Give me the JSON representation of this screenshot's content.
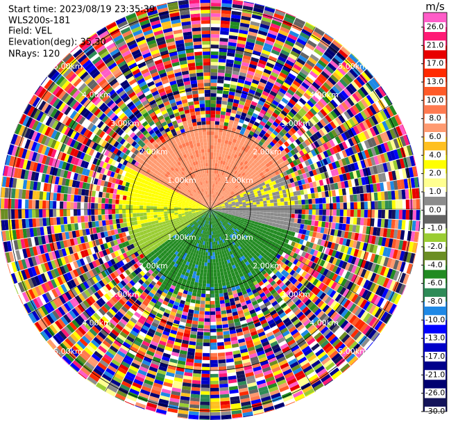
{
  "header": {
    "lines": [
      "Start time: 2023/08/19 23:35:39",
      "WLS200s-181",
      "Field: VEL",
      "Elevation(deg): 35.30",
      "NRays: 120"
    ]
  },
  "chart_data": {
    "type": "ppi",
    "colorbar": {
      "label": "m/s",
      "ticks": [
        {
          "value": 26,
          "label": "26.0"
        },
        {
          "value": 21,
          "label": "21.0"
        },
        {
          "value": 17,
          "label": "17.0"
        },
        {
          "value": 13,
          "label": "13.0"
        },
        {
          "value": 10,
          "label": "10.0"
        },
        {
          "value": 8,
          "label": "8.0"
        },
        {
          "value": 6,
          "label": "6.0"
        },
        {
          "value": 4,
          "label": "4.0"
        },
        {
          "value": 2,
          "label": "2.0"
        },
        {
          "value": 1,
          "label": "1.0"
        },
        {
          "value": 0,
          "label": "0.0"
        },
        {
          "value": -1,
          "label": "-1.0"
        },
        {
          "value": -2,
          "label": "-2.0"
        },
        {
          "value": -4,
          "label": "-4.0"
        },
        {
          "value": -6,
          "label": "-6.0"
        },
        {
          "value": -8,
          "label": "-8.0"
        },
        {
          "value": -10,
          "label": "-10.0"
        },
        {
          "value": -13,
          "label": "-13.0"
        },
        {
          "value": -17,
          "label": "-17.0"
        },
        {
          "value": -21,
          "label": "-21.0"
        },
        {
          "value": -26,
          "label": "-26.0"
        },
        {
          "value": -30,
          "label": "-30.0"
        }
      ],
      "colors": [
        "#ff5cc8",
        "#ff1a75",
        "#e80000",
        "#ff2a00",
        "#ff5a28",
        "#ff7a50",
        "#ff9a70",
        "#ffc020",
        "#ffff00",
        "#ffff90",
        "#8c8c8c",
        "#646464",
        "#9acd32",
        "#6b8e23",
        "#228b22",
        "#2e8b57",
        "#1e88e5",
        "#0000ff",
        "#0000c8",
        "#00008b",
        "#000070",
        "#14145a"
      ]
    },
    "range_rings": [
      {
        "value": 1,
        "label": "1.00km"
      },
      {
        "value": 2,
        "label": "2.00km"
      },
      {
        "value": 3,
        "label": "3.00km"
      },
      {
        "value": 4,
        "label": "4.00km"
      },
      {
        "value": 5,
        "label": "5.00km"
      }
    ]
  }
}
